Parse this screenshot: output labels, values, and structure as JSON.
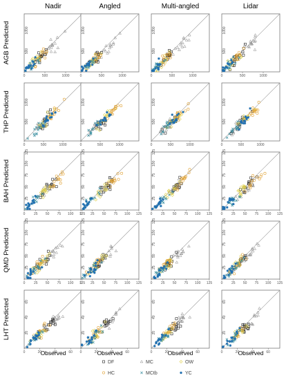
{
  "figure": {
    "column_titles": [
      "Nadir",
      "Angled",
      "Multi-angled",
      "Lidar"
    ],
    "row_titles": [
      "AGB Predicted",
      "THP Predicted",
      "BAH Predicted",
      "QMD Predicted",
      "LHT Predicted"
    ],
    "x_axis_label": "Observed"
  },
  "legend": {
    "items": [
      {
        "code": "DF",
        "marker": "square-open",
        "color": "#222222"
      },
      {
        "code": "MC",
        "marker": "triangle-open",
        "color": "#888888"
      },
      {
        "code": "OW",
        "marker": "diamond-open",
        "color": "#e0d04a"
      },
      {
        "code": "HC",
        "marker": "circle-open",
        "color": "#e0a030"
      },
      {
        "code": "MCtb",
        "marker": "x",
        "color": "#3a8fa0"
      },
      {
        "code": "YC",
        "marker": "star",
        "color": "#1f6fb0"
      }
    ]
  },
  "chart_data": {
    "type": "scatter",
    "layout": "facet grid: rows = response variables, columns = sensor configurations, 1:1 reference line in each panel",
    "columns": [
      "Nadir",
      "Angled",
      "Multi-angled",
      "Lidar"
    ],
    "x_label": "Observed",
    "rows": [
      {
        "variable": "AGB",
        "ylabel": "AGB Predicted",
        "range": [
          0,
          1400
        ],
        "ticks": [
          0,
          500,
          1000
        ],
        "tick_labels": [
          "0",
          "500",
          "1000"
        ],
        "y_tick_labels_shown": [
          "500",
          "1000"
        ]
      },
      {
        "variable": "THP",
        "ylabel": "THP Predicted",
        "range": [
          0,
          1500
        ],
        "ticks": [
          0,
          500,
          1000
        ],
        "tick_labels": [
          "0",
          "500",
          "1000"
        ],
        "y_tick_labels_shown": [
          "500",
          "1000"
        ]
      },
      {
        "variable": "BAH",
        "ylabel": "BAH Predicted",
        "range": [
          0,
          125
        ],
        "ticks": [
          0,
          25,
          50,
          75,
          100,
          125
        ],
        "tick_labels": [
          "0",
          "25",
          "50",
          "75",
          "100",
          "125"
        ],
        "y_tick_labels_shown": [
          "25",
          "50",
          "75",
          "100",
          "125"
        ]
      },
      {
        "variable": "QMD",
        "ylabel": "QMD Predicted",
        "range": [
          0,
          125
        ],
        "ticks": [
          0,
          25,
          50,
          75,
          100,
          125
        ],
        "tick_labels": [
          "0",
          "25",
          "50",
          "75",
          "100",
          "125"
        ],
        "y_tick_labels_shown": [
          "25",
          "50",
          "75",
          "100",
          "125"
        ]
      },
      {
        "variable": "LHT",
        "ylabel": "LHT Predicted",
        "range": [
          0,
          75
        ],
        "ticks": [
          0,
          20,
          40,
          60
        ],
        "tick_labels": [
          "0",
          "20",
          "40",
          "60"
        ],
        "y_tick_labels_shown": [
          "20",
          "40",
          "60"
        ]
      }
    ],
    "series": [
      {
        "name": "DF",
        "approx_observed_center": {
          "AGB": 380,
          "THP": 520,
          "BAH": 57,
          "QMD": 40,
          "LHT": 32
        }
      },
      {
        "name": "MC",
        "approx_observed_center": {
          "AGB": 700,
          "THP": 400,
          "BAH": 50,
          "QMD": 60,
          "LHT": 40
        }
      },
      {
        "name": "OW",
        "approx_observed_center": {
          "AGB": 250,
          "THP": 600,
          "BAH": 45,
          "QMD": 35,
          "LHT": 20
        }
      },
      {
        "name": "HC",
        "approx_observed_center": {
          "AGB": 350,
          "THP": 800,
          "BAH": 70,
          "QMD": 30,
          "LHT": 22
        }
      },
      {
        "name": "MCtb",
        "approx_observed_center": {
          "AGB": 200,
          "THP": 350,
          "BAH": 25,
          "QMD": 25,
          "LHT": 18
        }
      },
      {
        "name": "YC",
        "approx_observed_center": {
          "AGB": 120,
          "THP": 600,
          "BAH": 15,
          "QMD": 18,
          "LHT": 12
        }
      }
    ]
  }
}
